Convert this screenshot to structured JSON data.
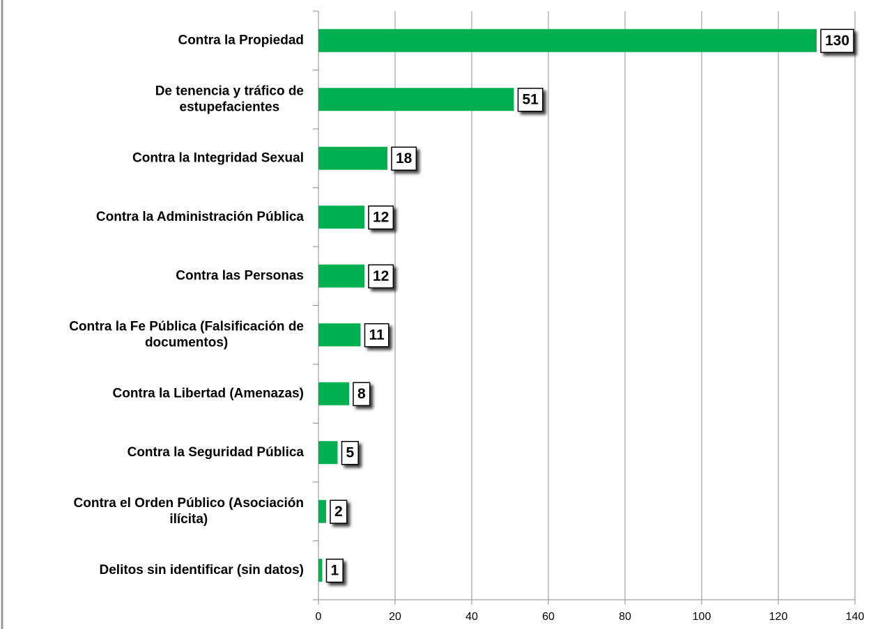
{
  "chart_data": {
    "type": "bar",
    "orientation": "horizontal",
    "categories": [
      "Contra la Propiedad",
      "De tenencia y tráfico de\nestupefacientes",
      "Contra la Integridad Sexual",
      "Contra la Administración Pública",
      "Contra las Personas",
      "Contra la Fe Pública (Falsificación de\ndocumentos)",
      "Contra la Libertad (Amenazas)",
      "Contra la Seguridad Pública",
      "Contra el Orden Público (Asociación\nilícita)",
      "Delitos sin identificar (sin datos)"
    ],
    "values": [
      130,
      51,
      18,
      12,
      12,
      11,
      8,
      5,
      2,
      1
    ],
    "color": "#00b050",
    "xlim": [
      0,
      140
    ],
    "xticks": [
      0,
      20,
      40,
      60,
      80,
      100,
      120,
      140
    ],
    "grid": true
  }
}
